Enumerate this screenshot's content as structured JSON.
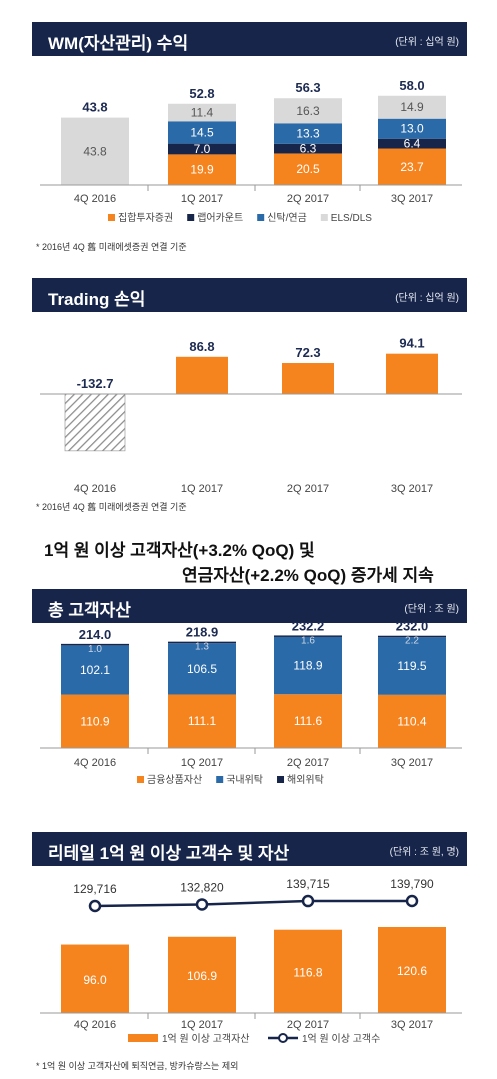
{
  "wm": {
    "title": "WM(자산관리) 수익",
    "unit": "(단위 : 십억 원)",
    "footnote": "* 2016년 4Q 舊 미래에셋증권 연결 기준"
  },
  "trading": {
    "title": "Trading 손익",
    "unit": "(단위 : 십억 원)",
    "footnote": "* 2016년 4Q 舊 미래에셋증권 연결 기준"
  },
  "headline": {
    "line1": "1억 원 이상 고객자산(+3.2% QoQ) 및",
    "line2": "연금자산(+2.2% QoQ) 증가세 지속"
  },
  "assets": {
    "title": "총 고객자산",
    "unit": "(단위 : 조 원)"
  },
  "retail": {
    "title": "리테일 1억 원 이상 고객수 및 자산",
    "unit": "(단위 : 조 원, 명)",
    "footnote": "* 1억 원 이상 고객자산에 퇴직연금, 방카슈랑스는 제외"
  },
  "colors": {
    "header": "#17254a",
    "orange": "#f5841f",
    "navy": "#17254a",
    "blue": "#2a6aa8",
    "gray": "#d9d9d9",
    "hatch": "#999999"
  },
  "chart_data": [
    {
      "id": "wm",
      "type": "bar",
      "stacked": true,
      "categories": [
        "4Q 2016",
        "1Q 2017",
        "2Q 2017",
        "3Q 2017"
      ],
      "series": [
        {
          "name": "집합투자증권",
          "color": "#f5841f",
          "values": [
            null,
            19.9,
            20.5,
            23.7
          ]
        },
        {
          "name": "랩어카운트",
          "color": "#17254a",
          "values": [
            null,
            7.0,
            6.3,
            6.4
          ]
        },
        {
          "name": "신탁/연금",
          "color": "#2a6aa8",
          "values": [
            null,
            14.5,
            13.3,
            13.0
          ]
        },
        {
          "name": "ELS/DLS",
          "color": "#d9d9d9",
          "values": [
            43.8,
            11.4,
            16.3,
            14.9
          ]
        }
      ],
      "totals": [
        43.8,
        52.8,
        56.3,
        58.0
      ],
      "ylim": [
        0,
        65
      ]
    },
    {
      "id": "trading",
      "type": "bar",
      "categories": [
        "4Q 2016",
        "1Q 2017",
        "2Q 2017",
        "3Q 2017"
      ],
      "values": [
        -132.7,
        86.8,
        72.3,
        94.1
      ],
      "value_labels": [
        "-132.7",
        "86.8",
        "72.3",
        "94.1"
      ],
      "hatched_first": true,
      "ylim": [
        -140,
        100
      ]
    },
    {
      "id": "assets",
      "type": "bar",
      "stacked": true,
      "categories": [
        "4Q 2016",
        "1Q 2017",
        "2Q 2017",
        "3Q 2017"
      ],
      "series": [
        {
          "name": "금융상품자산",
          "color": "#f5841f",
          "values": [
            110.9,
            111.1,
            111.6,
            110.4
          ]
        },
        {
          "name": "국내위탁",
          "color": "#2a6aa8",
          "values": [
            102.1,
            106.5,
            118.9,
            119.5
          ]
        },
        {
          "name": "해외위탁",
          "color": "#17254a",
          "values": [
            1.0,
            1.3,
            1.6,
            2.2
          ]
        }
      ],
      "totals": [
        214.0,
        218.9,
        232.2,
        232.0
      ],
      "ylim": [
        0,
        260
      ]
    },
    {
      "id": "retail",
      "type": "bar",
      "categories": [
        "4Q 2016",
        "1Q 2017",
        "2Q 2017",
        "3Q 2017"
      ],
      "series": [
        {
          "name": "1억 원 이상 고객자산",
          "type": "bar",
          "color": "#f5841f",
          "values": [
            96.0,
            106.9,
            116.8,
            120.6
          ],
          "labels": [
            "96.0",
            "106.9",
            "116.8",
            "120.6"
          ]
        },
        {
          "name": "1억 원 이상 고객수",
          "type": "line",
          "color": "#17254a",
          "values": [
            129716,
            132820,
            139715,
            139790
          ],
          "labels": [
            "129,716",
            "132,820",
            "139,715",
            "139,790"
          ]
        }
      ],
      "bar_ylim": [
        0,
        135
      ]
    }
  ]
}
